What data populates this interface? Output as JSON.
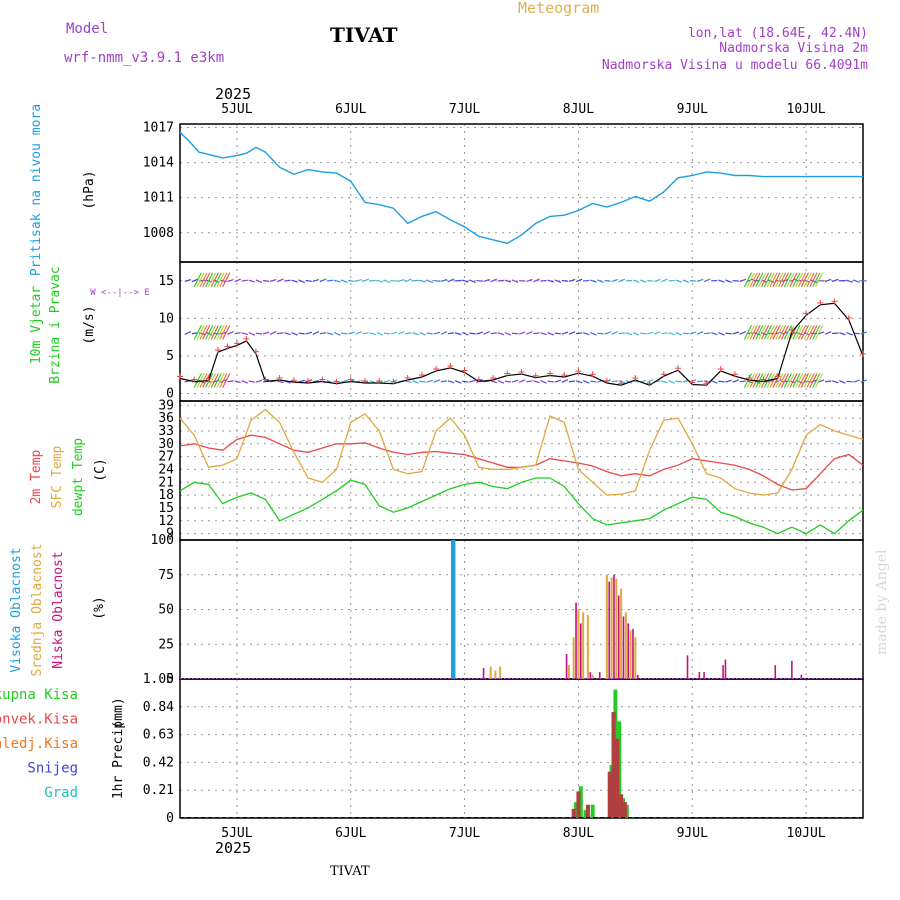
{
  "header": {
    "model_label": "Model",
    "model_name": "wrf-nmm_v3.9.1 e3km",
    "station": "TIVAT",
    "meteogram_label": "Meteogram",
    "lonlat": "lon,lat (18.64E, 42.4N)",
    "altitude": "Nadmorska Visina 2m",
    "model_altitude": "Nadmorska Visina u modelu 66.4091m",
    "year": "2025",
    "footer_station": "TIVAT",
    "credit": "made by Angel"
  },
  "colors": {
    "pressure": "#1e9fe0",
    "temp": "#e84a4a",
    "sfc_temp": "#e0a840",
    "dewpt": "#22cc22",
    "wind_label_a": "#22cc22",
    "high_cloud": "#1e9fe0",
    "mid_cloud": "#e0a840",
    "low_cloud": "#c8107a",
    "title_purple": "#a040c8"
  },
  "days": [
    "5JUL",
    "6JUL",
    "7JUL",
    "8JUL",
    "9JUL",
    "10JUL"
  ],
  "chart_data": [
    {
      "type": "line",
      "name": "pressure",
      "ylabel_line1": "Pritisak na nivou mora",
      "ylabel_unit": "(hPa)",
      "yticks": [
        1008,
        1011,
        1014,
        1017
      ],
      "ylim": [
        1005.5,
        1017.3
      ],
      "x": [
        0,
        2,
        4,
        6,
        9,
        12,
        14,
        16,
        18,
        21,
        24,
        27,
        30,
        33,
        36,
        39,
        42,
        45,
        48,
        51,
        54,
        57,
        60,
        63,
        66,
        69,
        72,
        75,
        78,
        81,
        84,
        87,
        90,
        93,
        96,
        99,
        102,
        105,
        108,
        111,
        114,
        117,
        120,
        123,
        126,
        129,
        132,
        135,
        138,
        141,
        144
      ],
      "values": [
        1016.6,
        1015.8,
        1014.9,
        1014.7,
        1014.4,
        1014.6,
        1014.8,
        1015.3,
        1014.9,
        1013.6,
        1013.0,
        1013.4,
        1013.2,
        1013.1,
        1012.4,
        1010.6,
        1010.4,
        1010.1,
        1008.8,
        1009.4,
        1009.8,
        1009.1,
        1008.5,
        1007.7,
        1007.4,
        1007.1,
        1007.8,
        1008.8,
        1009.4,
        1009.5,
        1009.9,
        1010.5,
        1010.2,
        1010.6,
        1011.1,
        1010.7,
        1011.5,
        1012.7,
        1012.9,
        1013.2,
        1013.1,
        1012.9,
        1012.9,
        1012.8,
        1012.8,
        1012.8,
        1012.8,
        1012.8,
        1012.8,
        1012.8,
        1012.8
      ]
    },
    {
      "type": "line",
      "name": "wind",
      "ylabel_line1": "10m Vjetar",
      "ylabel_line2": "Brzina i Pravac",
      "ylabel_unit": "(m/s)",
      "compass": "W <--|--> E",
      "yticks": [
        0,
        5,
        10,
        15
      ],
      "ylim": [
        -1,
        17.5
      ],
      "x": [
        0,
        3,
        6,
        8,
        10,
        12,
        14,
        16,
        18,
        21,
        24,
        27,
        30,
        33,
        36,
        39,
        42,
        45,
        48,
        51,
        54,
        57,
        60,
        63,
        66,
        69,
        72,
        75,
        78,
        81,
        84,
        87,
        90,
        93,
        96,
        99,
        102,
        105,
        108,
        111,
        114,
        117,
        120,
        123,
        126,
        129,
        132,
        135,
        138,
        141,
        144
      ],
      "values": [
        2.0,
        1.6,
        1.7,
        5.5,
        6.0,
        6.4,
        7.0,
        5.3,
        1.6,
        1.8,
        1.5,
        1.4,
        1.6,
        1.3,
        1.6,
        1.4,
        1.4,
        1.3,
        1.8,
        2.2,
        3.0,
        3.4,
        2.8,
        1.6,
        1.8,
        2.4,
        2.6,
        2.1,
        2.4,
        2.2,
        2.7,
        2.3,
        1.4,
        1.1,
        1.8,
        1.1,
        2.3,
        3.1,
        1.2,
        1.1,
        3.0,
        2.3,
        1.8,
        1.6,
        2.0,
        8.2,
        10.4,
        11.8,
        12.0,
        9.8,
        5.0
      ]
    },
    {
      "type": "line",
      "name": "temperature",
      "ylabel_line1": "2m Temp",
      "ylabel_line2": "SFC Temp",
      "ylabel_line3": "dewpt Temp",
      "ylabel_unit": "(C)",
      "yticks": [
        9,
        12,
        15,
        18,
        21,
        24,
        27,
        30,
        33,
        36,
        39
      ],
      "ylim": [
        7.5,
        40
      ],
      "x": [
        0,
        3,
        6,
        9,
        12,
        15,
        18,
        21,
        24,
        27,
        30,
        33,
        36,
        39,
        42,
        45,
        48,
        51,
        54,
        57,
        60,
        63,
        66,
        69,
        72,
        75,
        78,
        81,
        84,
        87,
        90,
        93,
        96,
        99,
        102,
        105,
        108,
        111,
        114,
        117,
        120,
        123,
        126,
        129,
        132,
        135,
        138,
        141,
        144
      ],
      "series": [
        {
          "name": "2m Temp",
          "values": [
            29.5,
            30.0,
            29.0,
            28.5,
            31.0,
            32.0,
            31.5,
            30.0,
            28.5,
            28.0,
            29.0,
            30.0,
            30.0,
            30.2,
            29.0,
            28.0,
            27.5,
            28.0,
            28.2,
            27.8,
            27.5,
            26.5,
            25.5,
            24.5,
            24.5,
            25.0,
            26.5,
            26.0,
            25.5,
            24.8,
            23.5,
            22.5,
            23.0,
            22.5,
            24.0,
            25.0,
            26.5,
            26.0,
            25.5,
            25.0,
            24.0,
            22.5,
            20.5,
            19.2,
            19.5,
            23.0,
            26.5,
            27.5,
            25.0
          ]
        },
        {
          "name": "SFC Temp",
          "values": [
            36.0,
            32.0,
            24.5,
            25.0,
            26.5,
            35.5,
            38.0,
            35.0,
            28.0,
            22.0,
            21.0,
            24.0,
            35.0,
            37.0,
            33.0,
            24.0,
            23.0,
            23.5,
            33.0,
            36.0,
            32.0,
            24.5,
            24.0,
            24.0,
            24.5,
            25.0,
            36.5,
            35.0,
            24.0,
            21.0,
            18.0,
            18.2,
            19.0,
            28.5,
            35.5,
            36.0,
            30.0,
            23.0,
            22.0,
            19.5,
            18.5,
            18.0,
            18.5,
            24.0,
            32.0,
            34.5,
            33.0,
            32.0,
            31.0
          ]
        },
        {
          "name": "dewpt Temp",
          "values": [
            19.0,
            21.0,
            20.5,
            16.0,
            17.5,
            18.5,
            17.0,
            12.0,
            13.5,
            15.0,
            17.0,
            19.0,
            21.5,
            20.5,
            15.5,
            14.0,
            15.0,
            16.5,
            18.0,
            19.5,
            20.5,
            21.0,
            20.0,
            19.5,
            21.0,
            22.0,
            22.0,
            20.0,
            16.0,
            12.5,
            11.0,
            11.5,
            12.0,
            12.5,
            14.5,
            16.0,
            17.5,
            17.0,
            14.0,
            13.0,
            11.5,
            10.5,
            9.0,
            10.5,
            9.0,
            11.0,
            9.0,
            12.0,
            14.5
          ]
        }
      ]
    },
    {
      "type": "bar",
      "name": "cloud",
      "ylabel_line1": "Visoka Oblacnost",
      "ylabel_line2": "Srednja Oblacnost",
      "ylabel_line3": "Niska Oblacnost",
      "ylabel_unit": "(%)",
      "yticks": [
        0,
        25,
        50,
        75,
        100
      ],
      "ylim": [
        0,
        100
      ],
      "series": [
        {
          "name": "Visoka Oblacnost",
          "x": [
            57.5,
            57.7
          ],
          "values": [
            100,
            100
          ]
        },
        {
          "name": "Srednja Oblacnost",
          "x": [
            65.5,
            66.5,
            67.5,
            82,
            83,
            84,
            85,
            86,
            87,
            88,
            89,
            90,
            91,
            92,
            93,
            94,
            95,
            96
          ],
          "values": [
            9,
            6,
            9,
            10,
            30,
            50,
            48,
            46,
            3,
            0,
            0,
            75,
            73,
            72,
            65,
            48,
            35,
            30
          ]
        },
        {
          "name": "Niska Oblacnost",
          "x": [
            64,
            81.5,
            83.5,
            84.5,
            86.5,
            88.5,
            90.5,
            91.5,
            92.5,
            93.5,
            94.5,
            95.5,
            96.5,
            107,
            109.5,
            110.5,
            114.5,
            115,
            125.5,
            129,
            131
          ],
          "values": [
            8,
            18,
            55,
            40,
            5,
            5,
            70,
            75,
            60,
            45,
            40,
            36,
            3,
            17,
            5,
            5,
            10,
            14,
            10,
            13,
            3
          ]
        }
      ]
    },
    {
      "type": "bar",
      "name": "precip",
      "ylabel_line1": "1hr Precip",
      "ylabel_unit": "(mm)",
      "legend": [
        "Ukupna Kisa",
        "Konvek.Kisa",
        "Zaledj.Kisa",
        "Snijeg",
        "Grad"
      ],
      "legend_colors": [
        "#22cc22",
        "#e84a4a",
        "#f07820",
        "#4040e0",
        "#20c0c0"
      ],
      "yticks_labels": [
        "0",
        "0.21",
        "0.42",
        "0.63",
        "0.84",
        "1.05"
      ],
      "yticks": [
        0,
        0.21,
        0.42,
        0.63,
        0.84,
        1.05
      ],
      "ylim": [
        0,
        1.05
      ],
      "series": [
        {
          "name": "Ukupna Kisa",
          "x": [
            83.5,
            84.5,
            85.5,
            87.0,
            91.0,
            91.8,
            92.6,
            93.4,
            94.2
          ],
          "values": [
            0.12,
            0.24,
            0.06,
            0.1,
            0.4,
            0.97,
            0.73,
            0.15,
            0.1
          ]
        },
        {
          "name": "Konvek.Kisa",
          "x": [
            83.0,
            84.0,
            86.0,
            90.6,
            91.4,
            92.2,
            93.0,
            93.8
          ],
          "values": [
            0.07,
            0.2,
            0.1,
            0.35,
            0.8,
            0.6,
            0.18,
            0.12
          ]
        }
      ]
    }
  ]
}
